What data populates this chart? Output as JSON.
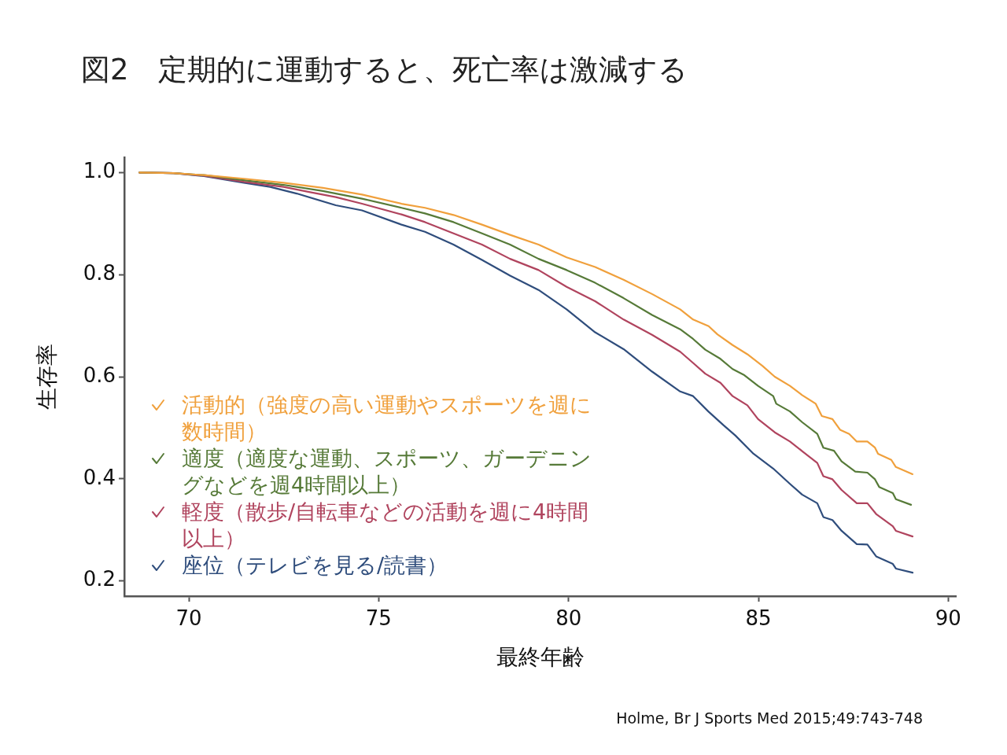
{
  "chart_data": {
    "type": "line",
    "title": "図2　定期的に運動すると、死亡率は激減する",
    "xlabel": "最終年齢",
    "ylabel": "生存率",
    "series": [
      {
        "name": "活動的（強度の高い運動やスポーツを週に数時間）",
        "color": "#f0a03c",
        "x": [
          68.7,
          69.6,
          70.4,
          71.45,
          72.49,
          73.53,
          74.56,
          75.6,
          76.22,
          76.97,
          77.72,
          78.46,
          79.21,
          79.95,
          80.7,
          81.45,
          82.2,
          82.94,
          83.28,
          83.69,
          83.92,
          84.32,
          84.71,
          85.11,
          85.43,
          85.83,
          86.15,
          86.51,
          86.67,
          86.95,
          87.15,
          87.39,
          87.59,
          87.87,
          88.07,
          88.15,
          88.5,
          88.62,
          89.06
        ],
        "values": [
          1.0,
          0.999,
          0.995,
          0.988,
          0.98,
          0.97,
          0.957,
          0.939,
          0.931,
          0.917,
          0.898,
          0.878,
          0.859,
          0.834,
          0.815,
          0.79,
          0.762,
          0.732,
          0.712,
          0.699,
          0.683,
          0.662,
          0.644,
          0.621,
          0.6,
          0.582,
          0.564,
          0.547,
          0.523,
          0.517,
          0.496,
          0.488,
          0.473,
          0.473,
          0.461,
          0.449,
          0.437,
          0.423,
          0.409
        ]
      },
      {
        "name": "適度（適度な運動、スポーツ、ガーデニングなどを週4時間以上）",
        "color": "#567a38",
        "x": [
          68.7,
          69.6,
          70.4,
          71.45,
          72.49,
          73.53,
          74.56,
          75.6,
          76.22,
          76.97,
          77.72,
          78.46,
          79.21,
          79.95,
          80.7,
          81.45,
          82.2,
          82.94,
          83.28,
          83.6,
          84.0,
          84.32,
          84.63,
          84.99,
          85.39,
          85.47,
          85.83,
          86.15,
          86.55,
          86.71,
          86.99,
          87.19,
          87.55,
          87.87,
          88.07,
          88.18,
          88.54,
          88.62,
          89.02
        ],
        "values": [
          1.0,
          0.999,
          0.995,
          0.985,
          0.976,
          0.964,
          0.949,
          0.931,
          0.92,
          0.903,
          0.881,
          0.859,
          0.831,
          0.809,
          0.784,
          0.754,
          0.721,
          0.693,
          0.674,
          0.653,
          0.635,
          0.615,
          0.603,
          0.582,
          0.562,
          0.547,
          0.532,
          0.511,
          0.488,
          0.461,
          0.455,
          0.434,
          0.414,
          0.412,
          0.399,
          0.384,
          0.372,
          0.36,
          0.349
        ]
      },
      {
        "name": "軽度（散歩/自転車などの活動を週に4時間以上）",
        "color": "#b0445e",
        "x": [
          68.7,
          69.6,
          70.4,
          71.45,
          72.49,
          73.17,
          73.87,
          74.56,
          75.6,
          76.22,
          76.97,
          77.72,
          78.46,
          79.21,
          79.95,
          80.7,
          81.45,
          82.2,
          82.94,
          83.28,
          83.6,
          84.0,
          84.32,
          84.71,
          84.99,
          85.43,
          85.83,
          86.19,
          86.55,
          86.71,
          86.95,
          87.19,
          87.59,
          87.87,
          88.1,
          88.54,
          88.62,
          89.06
        ],
        "values": [
          1.0,
          0.999,
          0.994,
          0.982,
          0.972,
          0.962,
          0.952,
          0.939,
          0.918,
          0.903,
          0.881,
          0.859,
          0.831,
          0.809,
          0.776,
          0.748,
          0.712,
          0.682,
          0.649,
          0.627,
          0.606,
          0.588,
          0.562,
          0.544,
          0.517,
          0.491,
          0.473,
          0.452,
          0.431,
          0.405,
          0.399,
          0.378,
          0.352,
          0.352,
          0.331,
          0.307,
          0.298,
          0.287
        ]
      },
      {
        "name": "座位（テレビを見る/読書）",
        "color": "#2f4d7c",
        "x": [
          68.7,
          69.6,
          70.4,
          71.45,
          72.14,
          72.84,
          73.87,
          74.56,
          75.6,
          76.22,
          76.97,
          77.72,
          78.46,
          79.21,
          79.95,
          80.7,
          81.45,
          82.2,
          82.94,
          83.28,
          83.68,
          84.08,
          84.39,
          84.87,
          85.39,
          85.83,
          86.15,
          86.55,
          86.71,
          86.95,
          87.19,
          87.59,
          87.87,
          88.1,
          88.54,
          88.62,
          89.06
        ],
        "values": [
          1.0,
          0.999,
          0.993,
          0.98,
          0.972,
          0.959,
          0.936,
          0.926,
          0.898,
          0.884,
          0.859,
          0.829,
          0.798,
          0.77,
          0.732,
          0.687,
          0.654,
          0.61,
          0.571,
          0.562,
          0.532,
          0.505,
          0.485,
          0.449,
          0.42,
          0.39,
          0.369,
          0.352,
          0.325,
          0.319,
          0.298,
          0.272,
          0.271,
          0.248,
          0.233,
          0.224,
          0.216
        ]
      }
    ],
    "xlim": [
      68.3,
      90.2
    ],
    "xticks": [
      70,
      75,
      80,
      85,
      90
    ],
    "ylim": [
      0.17,
      1.03
    ],
    "yticks": [
      {
        "value": 1.0,
        "label": "1.0"
      },
      0.8,
      0.6,
      0.4,
      0.2
    ],
    "legend": "bottom left",
    "marker": "none",
    "line_style": "solid",
    "annotations": [
      "Holme, Br J Sports Med 2015;49:743-748"
    ]
  }
}
